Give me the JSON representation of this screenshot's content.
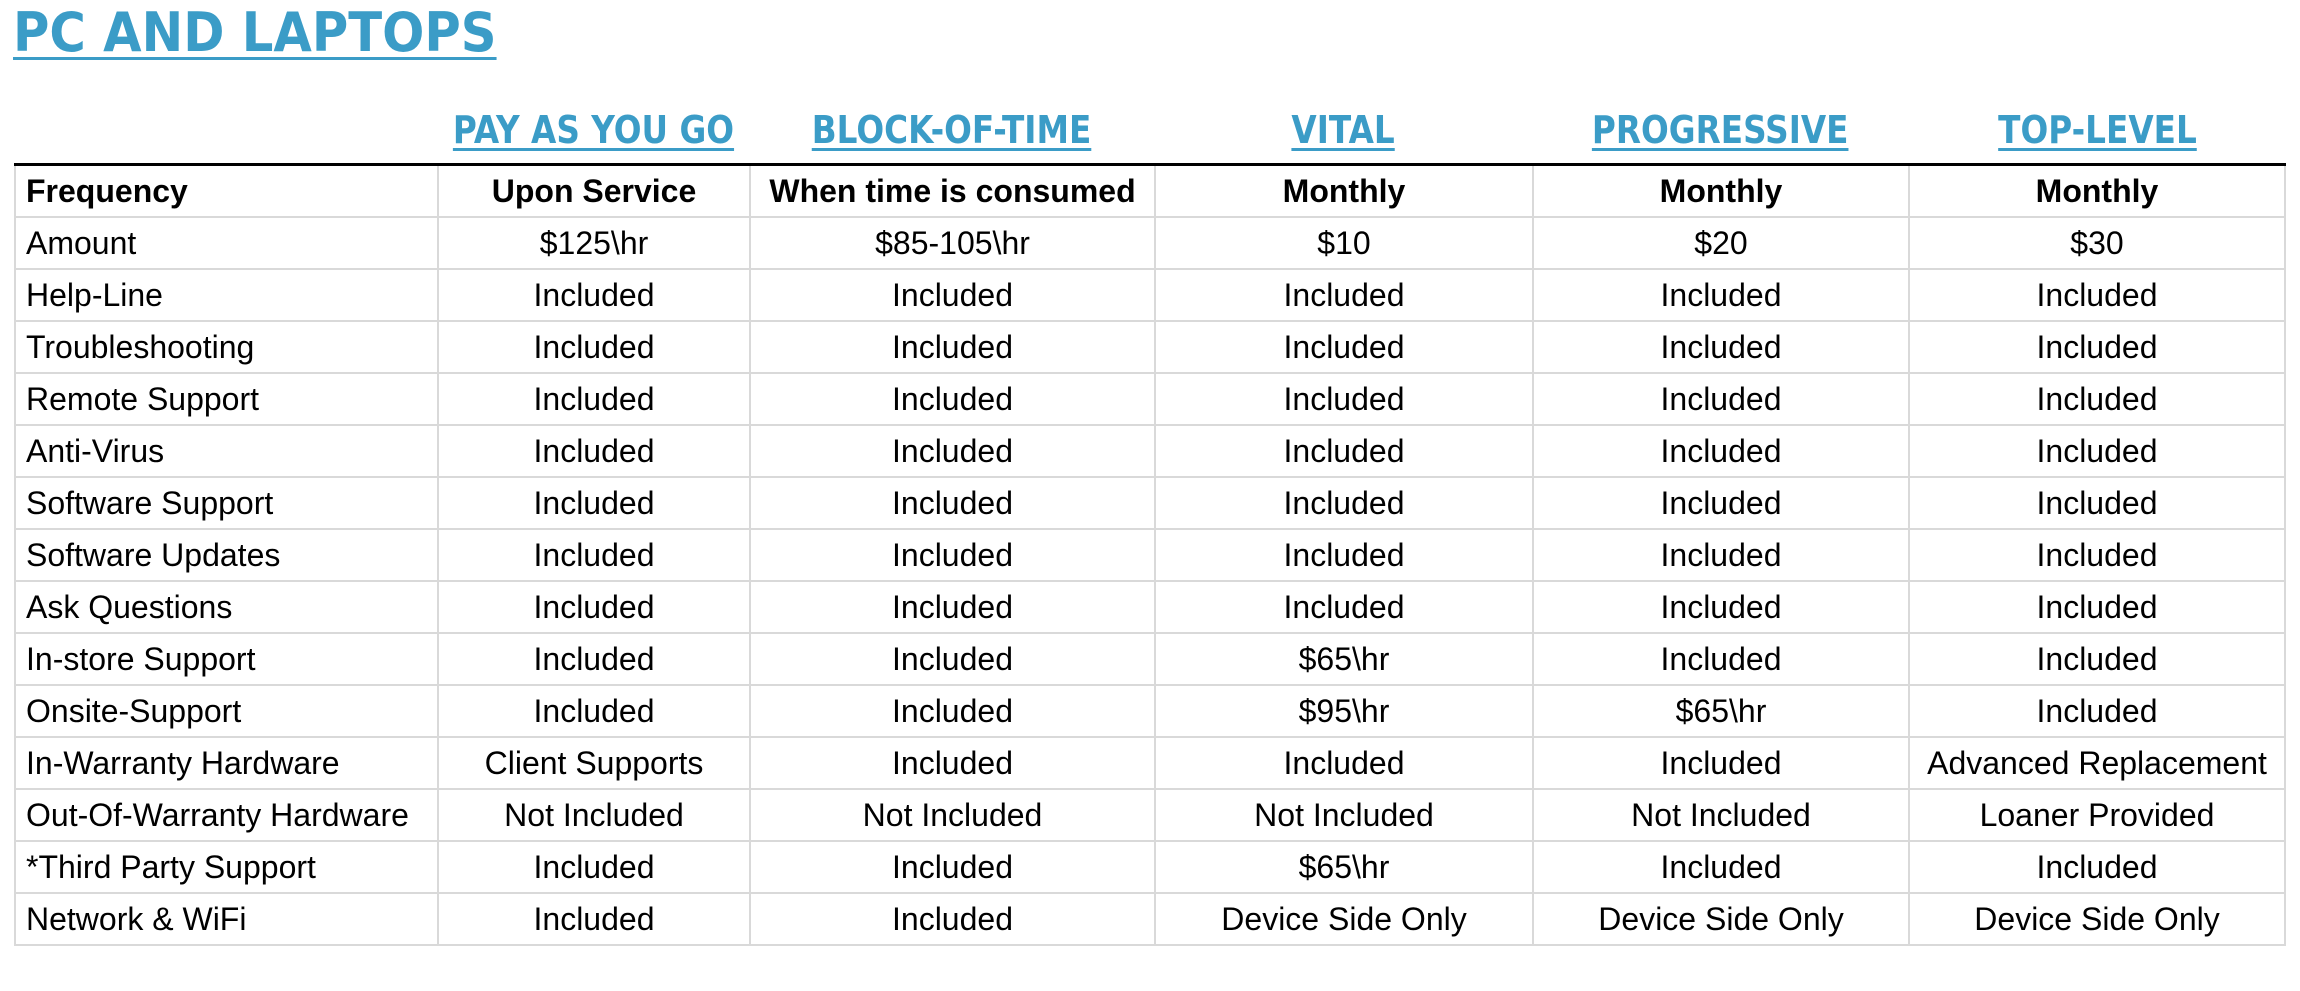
{
  "title": "PC AND LAPTOPS",
  "plans": [
    "PAY AS YOU GO",
    "BLOCK-OF-TIME",
    "VITAL",
    "PROGRESSIVE",
    "TOP-LEVEL"
  ],
  "header_row": {
    "label": "Frequency",
    "values": [
      "Upon Service",
      "When time is consumed",
      "Monthly",
      "Monthly",
      "Monthly"
    ]
  },
  "rows": [
    {
      "label": "Amount",
      "values": [
        "$125\\hr",
        "$85-105\\hr",
        "$10",
        "$20",
        "$30"
      ]
    },
    {
      "label": "Help-Line",
      "values": [
        "Included",
        "Included",
        "Included",
        "Included",
        "Included"
      ]
    },
    {
      "label": "Troubleshooting",
      "values": [
        "Included",
        "Included",
        "Included",
        "Included",
        "Included"
      ]
    },
    {
      "label": "Remote Support",
      "values": [
        "Included",
        "Included",
        "Included",
        "Included",
        "Included"
      ]
    },
    {
      "label": "Anti-Virus",
      "values": [
        "Included",
        "Included",
        "Included",
        "Included",
        "Included"
      ]
    },
    {
      "label": "Software Support",
      "values": [
        "Included",
        "Included",
        "Included",
        "Included",
        "Included"
      ]
    },
    {
      "label": "Software Updates",
      "values": [
        "Included",
        "Included",
        "Included",
        "Included",
        "Included"
      ]
    },
    {
      "label": "Ask Questions",
      "values": [
        "Included",
        "Included",
        "Included",
        "Included",
        "Included"
      ]
    },
    {
      "label": "In-store Support",
      "values": [
        "Included",
        "Included",
        "$65\\hr",
        "Included",
        "Included"
      ]
    },
    {
      "label": "Onsite-Support",
      "values": [
        "Included",
        "Included",
        "$95\\hr",
        "$65\\hr",
        "Included"
      ]
    },
    {
      "label": "In-Warranty Hardware",
      "values": [
        "Client Supports",
        "Included",
        "Included",
        "Included",
        "Advanced Replacement"
      ]
    },
    {
      "label": "Out-Of-Warranty Hardware",
      "values": [
        "Not Included",
        "Not Included",
        "Not Included",
        "Not Included",
        "Loaner Provided"
      ]
    },
    {
      "label": "*Third Party Support",
      "values": [
        "Included",
        "Included",
        "$65\\hr",
        "Included",
        "Included"
      ]
    },
    {
      "label": "Network & WiFi",
      "values": [
        "Included",
        "Included",
        "Device Side Only",
        "Device Side Only",
        "Device Side Only"
      ]
    }
  ]
}
